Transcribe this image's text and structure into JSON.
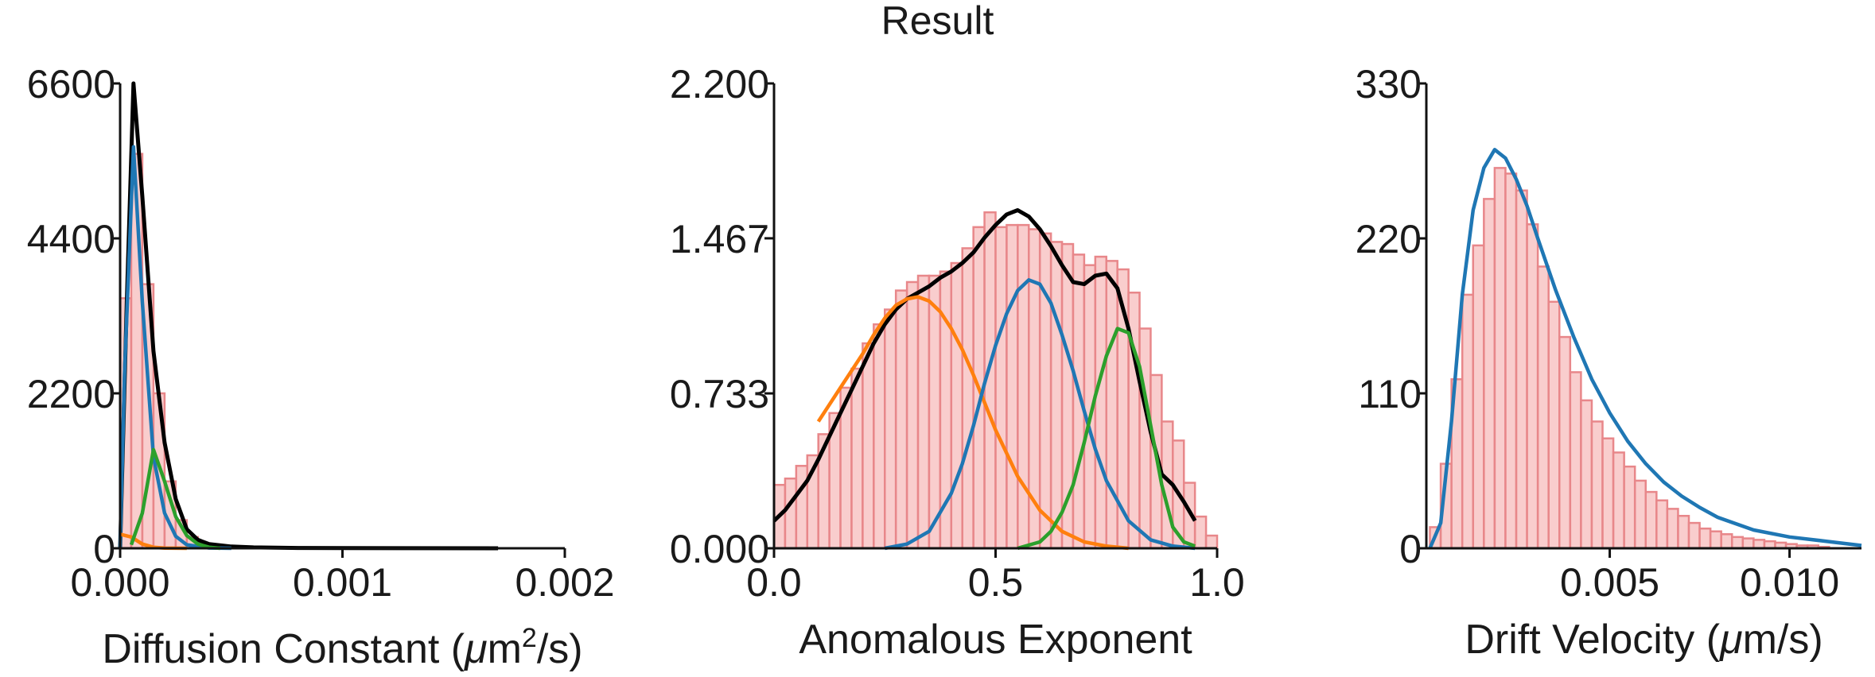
{
  "title": "Result",
  "colors": {
    "bar_fill": "#f8c4c4",
    "bar_edge": "#e8878a",
    "total_fit": "#000000",
    "comp1": "#1f77b4",
    "comp2": "#ff7f0e",
    "comp3": "#2ca02c"
  },
  "chart_data": [
    {
      "type": "bar",
      "xlabel": "Diffusion Constant (μm²/s)",
      "xlabel_parts": {
        "pre": "Diffusion Constant (",
        "mu": "μ",
        "m": "m",
        "sup": "2",
        "post": "/s)"
      },
      "ylabel": "",
      "xlim": [
        0.0,
        0.002
      ],
      "ylim": [
        0,
        6600
      ],
      "x_ticks": [
        0.0,
        0.001,
        0.002
      ],
      "x_tick_labels": [
        "0.000",
        "0.001",
        "0.002"
      ],
      "y_ticks": [
        0,
        2200,
        4400,
        6600
      ],
      "y_tick_labels": [
        "0",
        "2200",
        "4400",
        "6600"
      ],
      "histogram": {
        "bin_width": 5e-05,
        "bin_starts": [
          0.0,
          5e-05,
          0.0001,
          0.00015,
          0.0002,
          0.00025,
          0.0003,
          0.00035,
          0.0004,
          0.00045,
          0.0005,
          0.00055
        ],
        "values": [
          3550,
          5600,
          3750,
          2200,
          950,
          400,
          160,
          70,
          30,
          15,
          8,
          5
        ]
      },
      "series": [
        {
          "name": "",
          "color_key": "total_fit",
          "x": [
            0.0,
            3e-05,
            6e-05,
            0.0001,
            0.00015,
            0.0002,
            0.00025,
            0.0003,
            0.00035,
            0.0004,
            0.0005,
            0.0006,
            0.0008,
            0.001,
            0.0013,
            0.0017
          ],
          "y": [
            0,
            3500,
            6600,
            5000,
            2800,
            1500,
            700,
            270,
            120,
            60,
            25,
            12,
            5,
            2,
            1,
            0
          ]
        },
        {
          "name": "",
          "color_key": "comp1",
          "x": [
            0.0,
            2e-05,
            6e-05,
            0.0001,
            0.00015,
            0.0002,
            0.00025,
            0.0003,
            0.0004,
            0.0005
          ],
          "y": [
            0,
            2500,
            5700,
            3500,
            1300,
            500,
            170,
            50,
            5,
            0
          ]
        },
        {
          "name": "",
          "color_key": "comp2",
          "x": [
            0.0,
            5e-05,
            0.0001,
            0.00015,
            0.0002,
            0.0003
          ],
          "y": [
            200,
            160,
            60,
            15,
            3,
            0
          ]
        },
        {
          "name": "",
          "color_key": "comp3",
          "x": [
            5e-05,
            0.0001,
            0.00015,
            0.0002,
            0.00025,
            0.0003,
            0.00035,
            0.0004,
            0.00045
          ],
          "y": [
            50,
            500,
            1400,
            950,
            450,
            180,
            60,
            15,
            0
          ]
        }
      ]
    },
    {
      "type": "bar",
      "xlabel": "Anomalous Exponent",
      "ylabel": "",
      "xlim": [
        0.0,
        1.0
      ],
      "ylim": [
        0.0,
        2.2
      ],
      "x_ticks": [
        0.0,
        0.5,
        1.0
      ],
      "x_tick_labels": [
        "0.0",
        "0.5",
        "1.0"
      ],
      "y_ticks": [
        0.0,
        0.733,
        1.467,
        2.2
      ],
      "y_tick_labels": [
        "0.000",
        "0.733",
        "1.467",
        "2.200"
      ],
      "histogram": {
        "bin_width": 0.025,
        "bin_starts": [
          0.0,
          0.025,
          0.05,
          0.075,
          0.1,
          0.125,
          0.15,
          0.175,
          0.2,
          0.225,
          0.25,
          0.275,
          0.3,
          0.325,
          0.35,
          0.375,
          0.4,
          0.425,
          0.45,
          0.475,
          0.5,
          0.525,
          0.55,
          0.575,
          0.6,
          0.625,
          0.65,
          0.675,
          0.7,
          0.725,
          0.75,
          0.775,
          0.8,
          0.825,
          0.85,
          0.875,
          0.9,
          0.925,
          0.95,
          0.975
        ],
        "values": [
          0.3,
          0.33,
          0.39,
          0.44,
          0.54,
          0.64,
          0.76,
          0.85,
          0.97,
          1.06,
          1.13,
          1.22,
          1.26,
          1.29,
          1.29,
          1.31,
          1.35,
          1.42,
          1.52,
          1.59,
          1.52,
          1.53,
          1.53,
          1.51,
          1.49,
          1.45,
          1.44,
          1.39,
          1.34,
          1.38,
          1.36,
          1.32,
          1.21,
          1.04,
          0.82,
          0.6,
          0.51,
          0.31,
          0.15,
          0.06
        ]
      },
      "series": [
        {
          "name": "",
          "color_key": "total_fit",
          "x": [
            0.0,
            0.025,
            0.05,
            0.075,
            0.1,
            0.125,
            0.15,
            0.175,
            0.2,
            0.225,
            0.25,
            0.275,
            0.3,
            0.325,
            0.35,
            0.375,
            0.4,
            0.425,
            0.45,
            0.475,
            0.5,
            0.525,
            0.55,
            0.575,
            0.6,
            0.625,
            0.65,
            0.675,
            0.7,
            0.725,
            0.75,
            0.775,
            0.8,
            0.825,
            0.85,
            0.875,
            0.9,
            0.925,
            0.95
          ],
          "y": [
            0.13,
            0.18,
            0.25,
            0.32,
            0.42,
            0.53,
            0.64,
            0.75,
            0.86,
            0.97,
            1.06,
            1.13,
            1.18,
            1.21,
            1.24,
            1.28,
            1.31,
            1.35,
            1.4,
            1.47,
            1.53,
            1.58,
            1.6,
            1.57,
            1.51,
            1.43,
            1.34,
            1.26,
            1.25,
            1.29,
            1.3,
            1.23,
            1.04,
            0.79,
            0.55,
            0.35,
            0.3,
            0.22,
            0.13
          ]
        },
        {
          "name": "",
          "color_key": "comp2",
          "x": [
            0.1,
            0.15,
            0.2,
            0.225,
            0.25,
            0.275,
            0.3,
            0.325,
            0.35,
            0.375,
            0.4,
            0.425,
            0.45,
            0.475,
            0.5,
            0.55,
            0.6,
            0.65,
            0.7,
            0.75,
            0.8
          ],
          "y": [
            0.6,
            0.76,
            0.92,
            1.01,
            1.09,
            1.15,
            1.18,
            1.19,
            1.17,
            1.12,
            1.04,
            0.94,
            0.82,
            0.69,
            0.56,
            0.34,
            0.18,
            0.08,
            0.03,
            0.01,
            0.0
          ]
        },
        {
          "name": "",
          "color_key": "comp1",
          "x": [
            0.25,
            0.3,
            0.35,
            0.4,
            0.425,
            0.45,
            0.475,
            0.5,
            0.525,
            0.55,
            0.575,
            0.6,
            0.625,
            0.65,
            0.675,
            0.7,
            0.725,
            0.75,
            0.8,
            0.85,
            0.9,
            0.95
          ],
          "y": [
            0.0,
            0.02,
            0.08,
            0.26,
            0.4,
            0.58,
            0.78,
            0.96,
            1.11,
            1.22,
            1.27,
            1.25,
            1.16,
            1.01,
            0.84,
            0.65,
            0.47,
            0.32,
            0.13,
            0.04,
            0.01,
            0.0
          ]
        },
        {
          "name": "",
          "color_key": "comp3",
          "x": [
            0.55,
            0.6,
            0.625,
            0.65,
            0.675,
            0.7,
            0.725,
            0.75,
            0.775,
            0.8,
            0.825,
            0.85,
            0.875,
            0.9,
            0.925,
            0.95
          ],
          "y": [
            0.0,
            0.03,
            0.08,
            0.17,
            0.3,
            0.5,
            0.72,
            0.91,
            1.04,
            1.02,
            0.86,
            0.58,
            0.3,
            0.1,
            0.03,
            0.01
          ]
        }
      ]
    },
    {
      "type": "bar",
      "xlabel": "Drift Velocity (μm/s)",
      "xlabel_parts": {
        "pre": "Drift Velocity (",
        "mu": "μ",
        "m": "m",
        "sup": "",
        "post": "/s)"
      },
      "ylabel": "",
      "xlim": [
        -0.0001,
        0.012
      ],
      "ylim": [
        0,
        330
      ],
      "x_ticks": [
        0.005,
        0.01
      ],
      "x_tick_labels": [
        "0.005",
        "0.010"
      ],
      "y_ticks": [
        0,
        110,
        220,
        330
      ],
      "y_tick_labels": [
        "0",
        "110",
        "220",
        "330"
      ],
      "histogram": {
        "bin_width": 0.0003,
        "bin_starts": [
          0.0,
          0.0003,
          0.0006,
          0.0009,
          0.0012,
          0.0015,
          0.0018,
          0.0021,
          0.0024,
          0.0027,
          0.003,
          0.0033,
          0.0036,
          0.0039,
          0.0042,
          0.0045,
          0.0048,
          0.0051,
          0.0054,
          0.0057,
          0.006,
          0.0063,
          0.0066,
          0.0069,
          0.0072,
          0.0075,
          0.0078,
          0.0081,
          0.0084,
          0.0087,
          0.009,
          0.0093,
          0.0096,
          0.0099,
          0.0102,
          0.0105,
          0.0108
        ],
        "values": [
          15,
          60,
          120,
          180,
          215,
          248,
          270,
          266,
          254,
          230,
          200,
          175,
          150,
          125,
          105,
          90,
          78,
          68,
          58,
          48,
          40,
          34,
          28,
          23,
          18,
          14,
          12,
          10,
          8,
          7,
          6,
          5,
          4,
          3,
          2,
          2,
          1
        ]
      },
      "series": [
        {
          "name": "",
          "color_key": "comp1",
          "x": [
            0.0,
            0.0003,
            0.0006,
            0.0009,
            0.0012,
            0.0015,
            0.0018,
            0.0021,
            0.0024,
            0.0027,
            0.003,
            0.0035,
            0.004,
            0.0045,
            0.005,
            0.0055,
            0.006,
            0.0065,
            0.007,
            0.0075,
            0.008,
            0.009,
            0.01,
            0.011,
            0.012
          ],
          "y": [
            0,
            18,
            90,
            180,
            240,
            270,
            283,
            277,
            262,
            243,
            220,
            183,
            150,
            120,
            96,
            76,
            60,
            47,
            37,
            29,
            22,
            13,
            8,
            5,
            2
          ]
        }
      ]
    }
  ]
}
